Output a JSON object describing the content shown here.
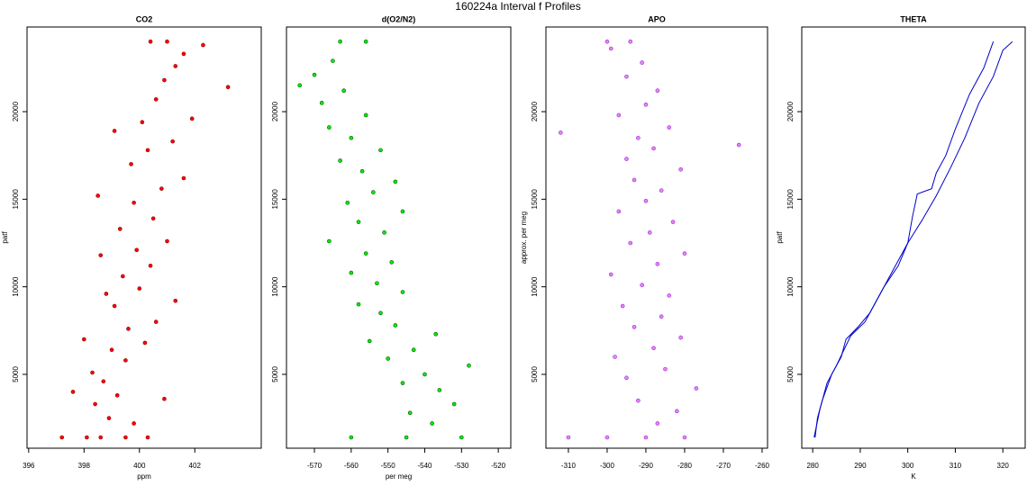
{
  "title": "160224a   Interval f Profiles",
  "chart_data": [
    {
      "type": "scatter",
      "title": "CO2",
      "xlabel": "ppm",
      "ylabel": "patf",
      "xlim": [
        395.94,
        404.4
      ],
      "xticks": [
        396,
        398,
        400,
        402
      ],
      "ylim": [
        784,
        24833
      ],
      "yticks": [
        5000,
        10000,
        15000,
        20000
      ],
      "series": [
        {
          "color": "#ff0000",
          "edge": "#8b0000",
          "x": [
            398.6,
            397.2,
            399.5,
            400.3,
            398.1,
            398.9,
            399.8,
            398.4,
            397.6,
            399.2,
            398.7,
            400.9,
            398.3,
            399.5,
            399.0,
            400.2,
            398.0,
            399.6,
            400.6,
            399.1,
            398.8,
            400.0,
            401.3,
            399.4,
            400.4,
            398.6,
            399.9,
            401.0,
            399.3,
            400.5,
            399.8,
            398.5,
            400.8,
            401.6,
            399.7,
            400.3,
            401.2,
            399.1,
            400.1,
            401.9,
            400.6,
            400.9,
            401.3,
            401.6,
            400.4,
            401.0,
            402.3,
            403.2
          ],
          "y": [
            1400,
            1400,
            1400,
            1400,
            1400,
            2500,
            2200,
            3300,
            4000,
            3800,
            4600,
            3600,
            5100,
            5800,
            6400,
            6800,
            7000,
            7600,
            8000,
            8900,
            9600,
            9900,
            9200,
            10600,
            11200,
            11800,
            12100,
            12600,
            13300,
            13900,
            14800,
            15200,
            15600,
            16200,
            17000,
            17800,
            18300,
            18900,
            19400,
            19600,
            20700,
            21800,
            22600,
            23300,
            24000,
            24000,
            23800,
            21400
          ]
        }
      ]
    },
    {
      "type": "scatter",
      "title": "d(O2/N2)",
      "xlabel": "per meg",
      "xlim": [
        -577.6,
        -516.6
      ],
      "xticks": [
        -570,
        -560,
        -550,
        -540,
        -530,
        -520
      ],
      "ylim": [
        784,
        24833
      ],
      "yticks": [
        5000,
        10000,
        15000,
        20000
      ],
      "series": [
        {
          "color": "#00ee00",
          "edge": "#005500",
          "x": [
            -545,
            -560,
            -530,
            -538,
            -544,
            -532,
            -536,
            -546,
            -540,
            -528,
            -550,
            -543,
            -555,
            -537,
            -548,
            -552,
            -558,
            -546,
            -553,
            -560,
            -549,
            -556,
            -566,
            -551,
            -558,
            -546,
            -561,
            -554,
            -548,
            -557,
            -563,
            -552,
            -560,
            -566,
            -556,
            -568,
            -562,
            -570,
            -565,
            -563,
            -556,
            -574
          ],
          "y": [
            1400,
            1400,
            1400,
            2200,
            2800,
            3300,
            4100,
            4500,
            5000,
            5500,
            5900,
            6400,
            6900,
            7300,
            7800,
            8500,
            9000,
            9700,
            10200,
            10800,
            11400,
            11900,
            12600,
            13100,
            13700,
            14300,
            14800,
            15400,
            16000,
            16600,
            17200,
            17800,
            18500,
            19100,
            19800,
            20500,
            21200,
            22100,
            22900,
            24000,
            24000,
            21500
          ]
        }
      ]
    },
    {
      "type": "scatter",
      "title": "APO",
      "ylabel": "approx. per meg",
      "xlim": [
        -315.8,
        -258.6
      ],
      "xticks": [
        -310,
        -300,
        -290,
        -280,
        -270,
        -260
      ],
      "ylim": [
        784,
        24833
      ],
      "yticks": [
        5000,
        10000,
        15000,
        20000
      ],
      "series": [
        {
          "color": "#ee82ee",
          "edge": "#8a2be2",
          "x": [
            -290,
            -300,
            -280,
            -310,
            -287,
            -282,
            -292,
            -277,
            -295,
            -285,
            -298,
            -288,
            -281,
            -293,
            -286,
            -296,
            -284,
            -291,
            -299,
            -287,
            -280,
            -294,
            -289,
            -283,
            -297,
            -290,
            -286,
            -293,
            -281,
            -295,
            -288,
            -292,
            -284,
            -297,
            -290,
            -287,
            -295,
            -291,
            -299,
            -300,
            -294,
            -312,
            -266
          ],
          "y": [
            1400,
            1400,
            1400,
            1400,
            2200,
            2900,
            3500,
            4200,
            4800,
            5300,
            6000,
            6500,
            7100,
            7700,
            8300,
            8900,
            9500,
            10100,
            10700,
            11300,
            11900,
            12500,
            13100,
            13700,
            14300,
            14900,
            15500,
            16100,
            16700,
            17300,
            17900,
            18500,
            19100,
            19800,
            20400,
            21200,
            22000,
            22800,
            23600,
            24000,
            24000,
            18800,
            18100
          ]
        }
      ]
    },
    {
      "type": "line",
      "title": "THETA",
      "xlabel": "K",
      "ylabel": "patf",
      "xlim": [
        277.7,
        324.7
      ],
      "xticks": [
        280,
        290,
        300,
        310,
        320
      ],
      "ylim": [
        784,
        24833
      ],
      "yticks": [
        5000,
        10000,
        15000,
        20000
      ],
      "series": [
        {
          "color": "#0000cd",
          "x": [
            280.5,
            281,
            282,
            284,
            286,
            287,
            289.5,
            292,
            295,
            298,
            300,
            301,
            302,
            305,
            306,
            308,
            310,
            313,
            316,
            318
          ],
          "y": [
            1400,
            2500,
            3500,
            5000,
            6000,
            7000,
            7700,
            8500,
            10000,
            11200,
            12500,
            14000,
            15300,
            15600,
            16500,
            17500,
            19000,
            21000,
            22500,
            24000
          ]
        },
        {
          "color": "#0000cd",
          "x": [
            280.3,
            281.5,
            283,
            285,
            288,
            291,
            294,
            297,
            300,
            303,
            306,
            309,
            312,
            315,
            318,
            320,
            322
          ],
          "y": [
            1400,
            3000,
            4500,
            5500,
            7200,
            8000,
            9500,
            11000,
            12500,
            13800,
            15200,
            16800,
            18500,
            20500,
            22000,
            23500,
            24000
          ]
        }
      ]
    }
  ]
}
